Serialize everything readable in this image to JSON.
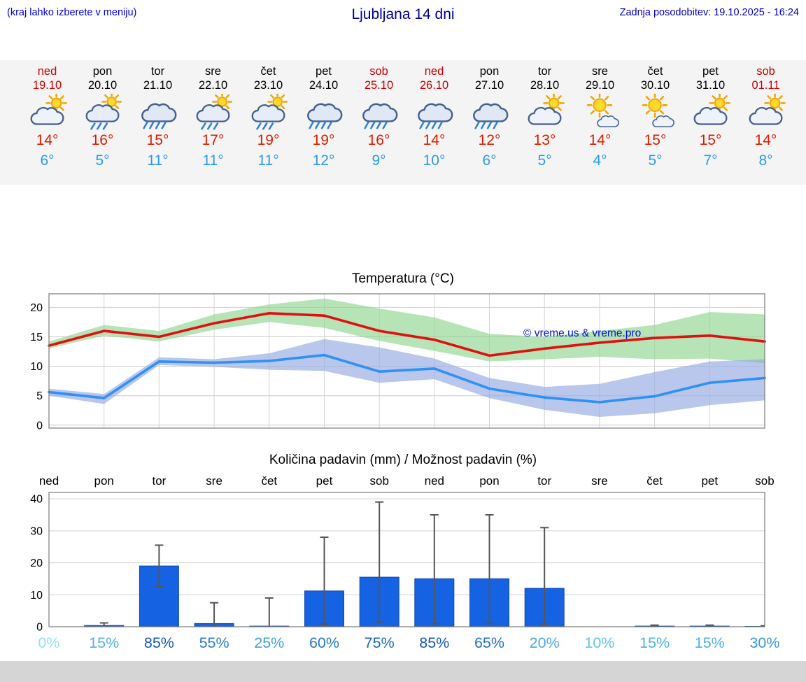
{
  "header": {
    "left_note": "(kraj lahko izberete v meniju)",
    "title": "Ljubljana 14 dni",
    "last_update": "Zadnja posodobitev: 19.10.2025 - 16:24"
  },
  "forecast": {
    "colors": {
      "weekend": "#cc0000",
      "weekday": "#000000",
      "tmax": "#dd1c00",
      "tmin": "#2b9ae8"
    },
    "days": [
      {
        "name": "ned",
        "date": "19.10",
        "weekend": true,
        "icon": "sun-cloud",
        "tmax": "14°",
        "tmin": "6°"
      },
      {
        "name": "pon",
        "date": "20.10",
        "weekend": false,
        "icon": "sun-cloud-rain",
        "tmax": "16°",
        "tmin": "5°"
      },
      {
        "name": "tor",
        "date": "21.10",
        "weekend": false,
        "icon": "cloud-rain",
        "tmax": "15°",
        "tmin": "11°"
      },
      {
        "name": "sre",
        "date": "22.10",
        "weekend": false,
        "icon": "sun-cloud-rain",
        "tmax": "17°",
        "tmin": "11°"
      },
      {
        "name": "čet",
        "date": "23.10",
        "weekend": false,
        "icon": "sun-cloud-rain",
        "tmax": "19°",
        "tmin": "11°"
      },
      {
        "name": "pet",
        "date": "24.10",
        "weekend": false,
        "icon": "cloud-rain",
        "tmax": "19°",
        "tmin": "12°"
      },
      {
        "name": "sob",
        "date": "25.10",
        "weekend": true,
        "icon": "cloud-rain",
        "tmax": "16°",
        "tmin": "9°"
      },
      {
        "name": "ned",
        "date": "26.10",
        "weekend": true,
        "icon": "cloud-rain",
        "tmax": "14°",
        "tmin": "10°"
      },
      {
        "name": "pon",
        "date": "27.10",
        "weekend": false,
        "icon": "cloud-rain",
        "tmax": "12°",
        "tmin": "6°"
      },
      {
        "name": "tor",
        "date": "28.10",
        "weekend": false,
        "icon": "sun-cloud",
        "tmax": "13°",
        "tmin": "5°"
      },
      {
        "name": "sre",
        "date": "29.10",
        "weekend": false,
        "icon": "sun-small-cloud",
        "tmax": "14°",
        "tmin": "4°"
      },
      {
        "name": "čet",
        "date": "30.10",
        "weekend": false,
        "icon": "sun-small-cloud",
        "tmax": "15°",
        "tmin": "5°"
      },
      {
        "name": "pet",
        "date": "31.10",
        "weekend": false,
        "icon": "sun-cloud",
        "tmax": "15°",
        "tmin": "7°"
      },
      {
        "name": "sob",
        "date": "01.11",
        "weekend": true,
        "icon": "sun-cloud",
        "tmax": "14°",
        "tmin": "8°"
      }
    ]
  },
  "chart_data": [
    {
      "type": "line",
      "title": "Temperatura (°C)",
      "categories": [
        "ned",
        "pon",
        "tor",
        "sre",
        "čet",
        "pet",
        "sob",
        "ned",
        "pon",
        "tor",
        "sre",
        "čet",
        "pet",
        "sob"
      ],
      "ylim": [
        -0.5,
        22.3
      ],
      "yticks": [
        0,
        5,
        10,
        15,
        20
      ],
      "grid": true,
      "legend": "none",
      "watermark": "© vreme.us & vreme.pro",
      "watermark_color": "#0011cc",
      "series": [
        {
          "name": "max-temp",
          "color": "#e01010",
          "values": [
            13.5,
            16,
            15,
            17.3,
            19,
            18.6,
            16,
            14.5,
            11.8,
            13,
            14,
            14.8,
            15.2,
            14.2
          ],
          "band_upper": [
            14.2,
            17,
            16,
            18.8,
            20.5,
            21.5,
            19.8,
            18.3,
            15.5,
            15,
            16,
            17,
            19.2,
            18.8
          ],
          "band_lower": [
            13,
            15.2,
            14.2,
            16.2,
            17.5,
            16.5,
            14.3,
            12.6,
            10.8,
            11.2,
            11.6,
            11.2,
            11.3,
            10.5
          ],
          "band_color": "#8fd68f"
        },
        {
          "name": "min-temp",
          "color": "#2f90f5",
          "values": [
            5.6,
            4.6,
            10.8,
            10.6,
            10.9,
            11.9,
            9.1,
            9.6,
            6.2,
            4.7,
            3.9,
            4.9,
            7.2,
            8.0
          ],
          "band_upper": [
            6.2,
            5.3,
            11.5,
            11.2,
            12.2,
            14.6,
            13.2,
            11.3,
            8.0,
            6.5,
            7.0,
            9.0,
            10.8,
            11.2
          ],
          "band_lower": [
            5.0,
            3.6,
            10.2,
            9.9,
            9.4,
            9.2,
            7.2,
            7.8,
            4.6,
            2.6,
            1.4,
            2.0,
            3.4,
            4.2
          ],
          "band_color": "#93a9e2"
        }
      ]
    },
    {
      "type": "bar",
      "title": "Količina padavin (mm) / Možnost padavin (%)",
      "categories": [
        "ned",
        "pon",
        "tor",
        "sre",
        "čet",
        "pet",
        "sob",
        "ned",
        "pon",
        "tor",
        "sre",
        "čet",
        "pet",
        "sob"
      ],
      "ylim": [
        0,
        42
      ],
      "yticks": [
        0,
        10,
        20,
        30,
        40
      ],
      "grid": true,
      "ylabel": "",
      "bar_color": "#1563e2",
      "bar_edge_color": "#0c47b8",
      "whisker_color": "#555555",
      "values": [
        0,
        0.4,
        19,
        1,
        0.2,
        11.2,
        15.5,
        15,
        15,
        12,
        0,
        0.2,
        0.2,
        0.1
      ],
      "whisker_low": [
        0,
        0.1,
        12.5,
        0,
        0,
        0.8,
        1.5,
        1,
        1,
        0.8,
        0,
        0,
        0,
        0
      ],
      "whisker_high": [
        0,
        1.2,
        25.5,
        7.5,
        9,
        28,
        39,
        35,
        35,
        31,
        0,
        0.5,
        0.5,
        0.3
      ],
      "probabilities": [
        {
          "label": "0%",
          "color": "#90e4ec"
        },
        {
          "label": "15%",
          "color": "#4eb2e6"
        },
        {
          "label": "85%",
          "color": "#1459b8"
        },
        {
          "label": "55%",
          "color": "#2a7ed2"
        },
        {
          "label": "25%",
          "color": "#41a1e0"
        },
        {
          "label": "60%",
          "color": "#2678cc"
        },
        {
          "label": "75%",
          "color": "#1b66c0"
        },
        {
          "label": "85%",
          "color": "#1459b8"
        },
        {
          "label": "65%",
          "color": "#2272c8"
        },
        {
          "label": "20%",
          "color": "#47a9e2"
        },
        {
          "label": "10%",
          "color": "#5fc4ec"
        },
        {
          "label": "15%",
          "color": "#4eb2e6"
        },
        {
          "label": "15%",
          "color": "#4eb2e6"
        },
        {
          "label": "30%",
          "color": "#3897dc"
        }
      ]
    }
  ]
}
